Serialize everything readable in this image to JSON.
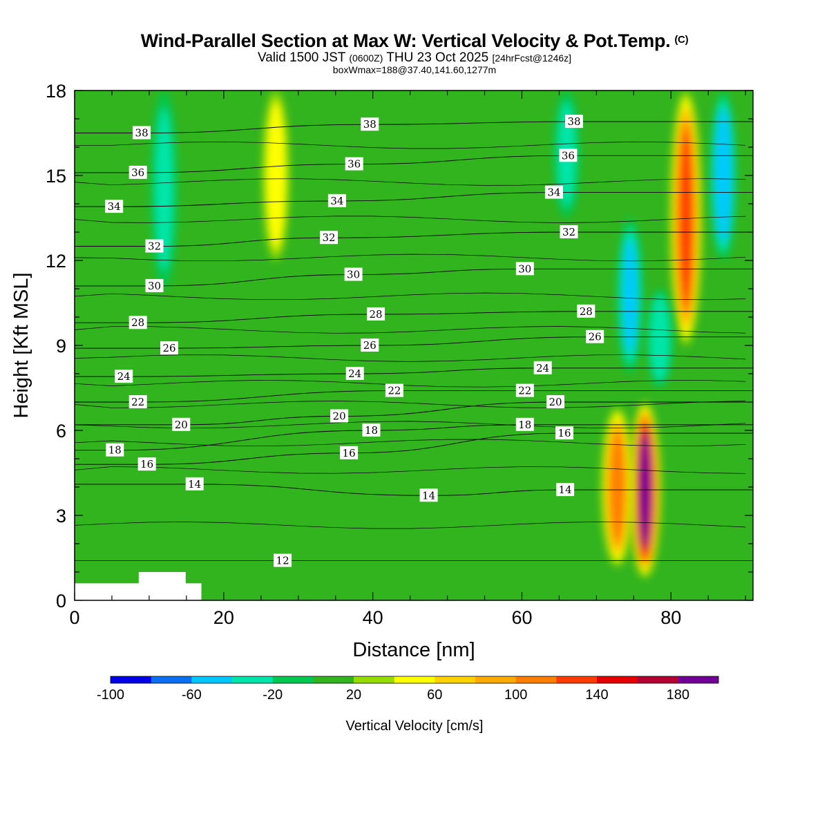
{
  "header": {
    "title": "Wind-Parallel Section at Max W: Vertical Velocity & Pot.Temp.",
    "copyright_mark": "(C)",
    "valid_prefix": "Valid 1500 JST",
    "valid_utc": "(0600Z)",
    "valid_date": "THU 23 Oct 2025",
    "forecast_tag": "[24hrFcst@1246z]",
    "boxwmax": "boxWmax=188@37.40,141.60,1277m"
  },
  "chart_data": {
    "type": "heatmap",
    "title": "Wind-Parallel Section at Max W: Vertical Velocity & Pot.Temp.",
    "xlabel": "Distance [nm]",
    "ylabel": "Height [Kft MSL]",
    "xlim": [
      0,
      91
    ],
    "ylim": [
      0,
      18
    ],
    "x_ticks": [
      0,
      20,
      40,
      60,
      80
    ],
    "y_ticks": [
      0,
      3,
      6,
      9,
      12,
      15,
      18
    ],
    "colorbar": {
      "label": "Vertical Velocity [cm/s]",
      "levels": [
        -100,
        -80,
        -60,
        -40,
        -20,
        0,
        20,
        40,
        60,
        80,
        100,
        120,
        140,
        160,
        180,
        200
      ],
      "tick_labels": [
        "-100",
        "-60",
        "-20",
        "20",
        "60",
        "100",
        "140",
        "180"
      ],
      "tick_values": [
        -100,
        -60,
        -20,
        20,
        60,
        100,
        140,
        180
      ],
      "colors": [
        "#0000e6",
        "#0a6ff2",
        "#00c8ff",
        "#00e6aa",
        "#00c850",
        "#32b41e",
        "#96dc00",
        "#ffff00",
        "#ffd200",
        "#ffaa00",
        "#ff7d00",
        "#ff3c00",
        "#e60000",
        "#b40032",
        "#730096"
      ]
    },
    "background_value": 10,
    "velocity_features": [
      {
        "x": 76.5,
        "y_range": [
          0.8,
          7.0
        ],
        "peak": 188
      },
      {
        "x": 72.8,
        "y_range": [
          1.2,
          6.8
        ],
        "peak": 110
      },
      {
        "x": 82.0,
        "y_range": [
          9.0,
          18.0
        ],
        "peak": 120
      },
      {
        "x": 87.0,
        "y_range": [
          12.0,
          18.0
        ],
        "peak": -60
      },
      {
        "x": 74.5,
        "y_range": [
          8.0,
          13.5
        ],
        "peak": -45
      },
      {
        "x": 78.5,
        "y_range": [
          7.5,
          11.0
        ],
        "peak": -40
      },
      {
        "x": 12.0,
        "y_range": [
          11.0,
          18.0
        ],
        "peak": -25
      },
      {
        "x": 27.0,
        "y_range": [
          12.0,
          18.0
        ],
        "peak": 45
      },
      {
        "x": 66.0,
        "y_range": [
          13.5,
          18.0
        ],
        "peak": -25
      }
    ],
    "potential_temperature_labels": [
      {
        "label": "38",
        "x": 9,
        "y": 16.5
      },
      {
        "label": "36",
        "x": 8.5,
        "y": 15.1
      },
      {
        "label": "34",
        "x": 5.3,
        "y": 13.9
      },
      {
        "label": "32",
        "x": 10.7,
        "y": 12.5
      },
      {
        "label": "30",
        "x": 10.7,
        "y": 11.1
      },
      {
        "label": "28",
        "x": 8.5,
        "y": 9.8
      },
      {
        "label": "26",
        "x": 12.7,
        "y": 8.9
      },
      {
        "label": "24",
        "x": 6.6,
        "y": 7.9
      },
      {
        "label": "22",
        "x": 8.5,
        "y": 7.0
      },
      {
        "label": "20",
        "x": 14.3,
        "y": 6.2
      },
      {
        "label": "18",
        "x": 5.4,
        "y": 5.3
      },
      {
        "label": "16",
        "x": 9.7,
        "y": 4.8
      },
      {
        "label": "14",
        "x": 16.1,
        "y": 4.1
      },
      {
        "label": "12",
        "x": 27.9,
        "y": 1.4
      },
      {
        "label": "38",
        "x": 39.6,
        "y": 16.8
      },
      {
        "label": "36",
        "x": 37.5,
        "y": 15.4
      },
      {
        "label": "34",
        "x": 35.2,
        "y": 14.1
      },
      {
        "label": "32",
        "x": 34.1,
        "y": 12.8
      },
      {
        "label": "30",
        "x": 37.4,
        "y": 11.5
      },
      {
        "label": "28",
        "x": 40.4,
        "y": 10.1
      },
      {
        "label": "26",
        "x": 39.6,
        "y": 9.0
      },
      {
        "label": "24",
        "x": 37.6,
        "y": 8.0
      },
      {
        "label": "22",
        "x": 42.9,
        "y": 7.4
      },
      {
        "label": "20",
        "x": 35.5,
        "y": 6.5
      },
      {
        "label": "18",
        "x": 39.8,
        "y": 6.0
      },
      {
        "label": "16",
        "x": 36.8,
        "y": 5.2
      },
      {
        "label": "14",
        "x": 47.5,
        "y": 3.7
      },
      {
        "label": "38",
        "x": 67.0,
        "y": 16.9
      },
      {
        "label": "36",
        "x": 66.2,
        "y": 15.7
      },
      {
        "label": "34",
        "x": 64.3,
        "y": 14.4
      },
      {
        "label": "32",
        "x": 66.3,
        "y": 13.0
      },
      {
        "label": "30",
        "x": 60.4,
        "y": 11.7
      },
      {
        "label": "28",
        "x": 68.6,
        "y": 10.2
      },
      {
        "label": "26",
        "x": 69.8,
        "y": 9.3
      },
      {
        "label": "24",
        "x": 62.8,
        "y": 8.2
      },
      {
        "label": "22",
        "x": 60.4,
        "y": 7.4
      },
      {
        "label": "20",
        "x": 64.5,
        "y": 7.0
      },
      {
        "label": "18",
        "x": 60.4,
        "y": 6.2
      },
      {
        "label": "16",
        "x": 65.7,
        "y": 5.9
      },
      {
        "label": "14",
        "x": 65.8,
        "y": 3.9
      }
    ],
    "terrain": [
      [
        0,
        0.6
      ],
      [
        8.6,
        0.6
      ],
      [
        8.6,
        1.0
      ],
      [
        14.9,
        1.0
      ],
      [
        14.9,
        0.6
      ],
      [
        17.0,
        0.6
      ],
      [
        17.0,
        0.3
      ]
    ]
  }
}
